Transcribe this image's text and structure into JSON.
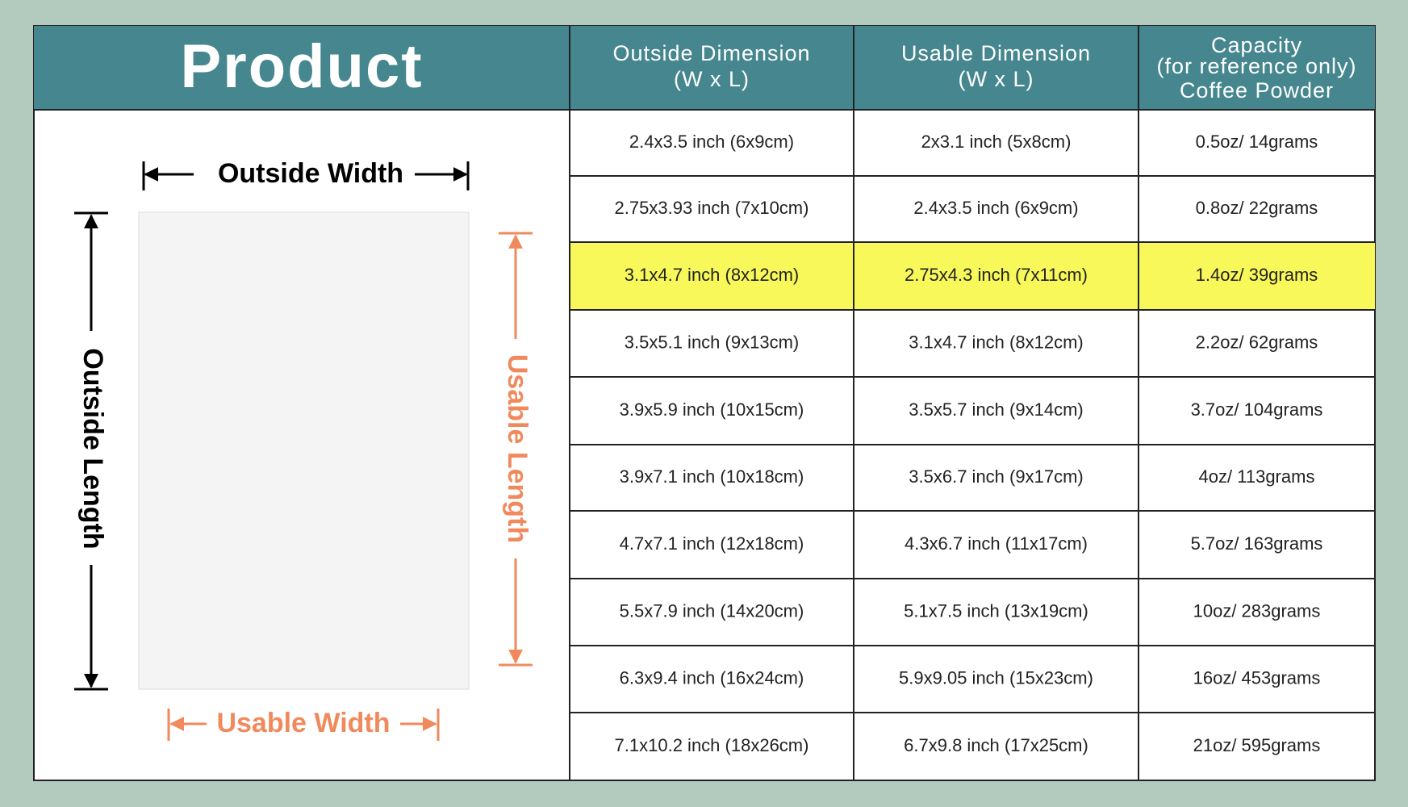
{
  "header": {
    "product": "Product",
    "columns": [
      {
        "lines": [
          "Outside Dimension",
          "(W x L)"
        ]
      },
      {
        "lines": [
          "Usable Dimension",
          "(W x L)"
        ]
      },
      {
        "lines": [
          "Capacity",
          "(for reference only)",
          "Coffee Powder"
        ]
      }
    ]
  },
  "diagram": {
    "outside_width": "Outside Width",
    "outside_length": "Outside Length",
    "usable_length": "Usable Length",
    "usable_width": "Usable Width"
  },
  "table": {
    "highlight_row": 2,
    "rows": [
      [
        "2.4x3.5 inch (6x9cm)",
        "2x3.1 inch (5x8cm)",
        "0.5oz/ 14grams"
      ],
      [
        "2.75x3.93 inch (7x10cm)",
        "2.4x3.5 inch (6x9cm)",
        "0.8oz/ 22grams"
      ],
      [
        "3.1x4.7 inch (8x12cm)",
        "2.75x4.3 inch (7x11cm)",
        "1.4oz/ 39grams"
      ],
      [
        "3.5x5.1 inch (9x13cm)",
        "3.1x4.7 inch (8x12cm)",
        "2.2oz/ 62grams"
      ],
      [
        "3.9x5.9 inch (10x15cm)",
        "3.5x5.7 inch (9x14cm)",
        "3.7oz/ 104grams"
      ],
      [
        "3.9x7.1 inch (10x18cm)",
        "3.5x6.7 inch (9x17cm)",
        "4oz/ 113grams"
      ],
      [
        "4.7x7.1 inch (12x18cm)",
        "4.3x6.7 inch (11x17cm)",
        "5.7oz/ 163grams"
      ],
      [
        "5.5x7.9 inch (14x20cm)",
        "5.1x7.5 inch (13x19cm)",
        "10oz/ 283grams"
      ],
      [
        "6.3x9.4 inch (16x24cm)",
        "5.9x9.05 inch (15x23cm)",
        "16oz/ 453grams"
      ],
      [
        "7.1x10.2 inch (18x26cm)",
        "6.7x9.8 inch (17x25cm)",
        "21oz/ 595grams"
      ]
    ]
  }
}
